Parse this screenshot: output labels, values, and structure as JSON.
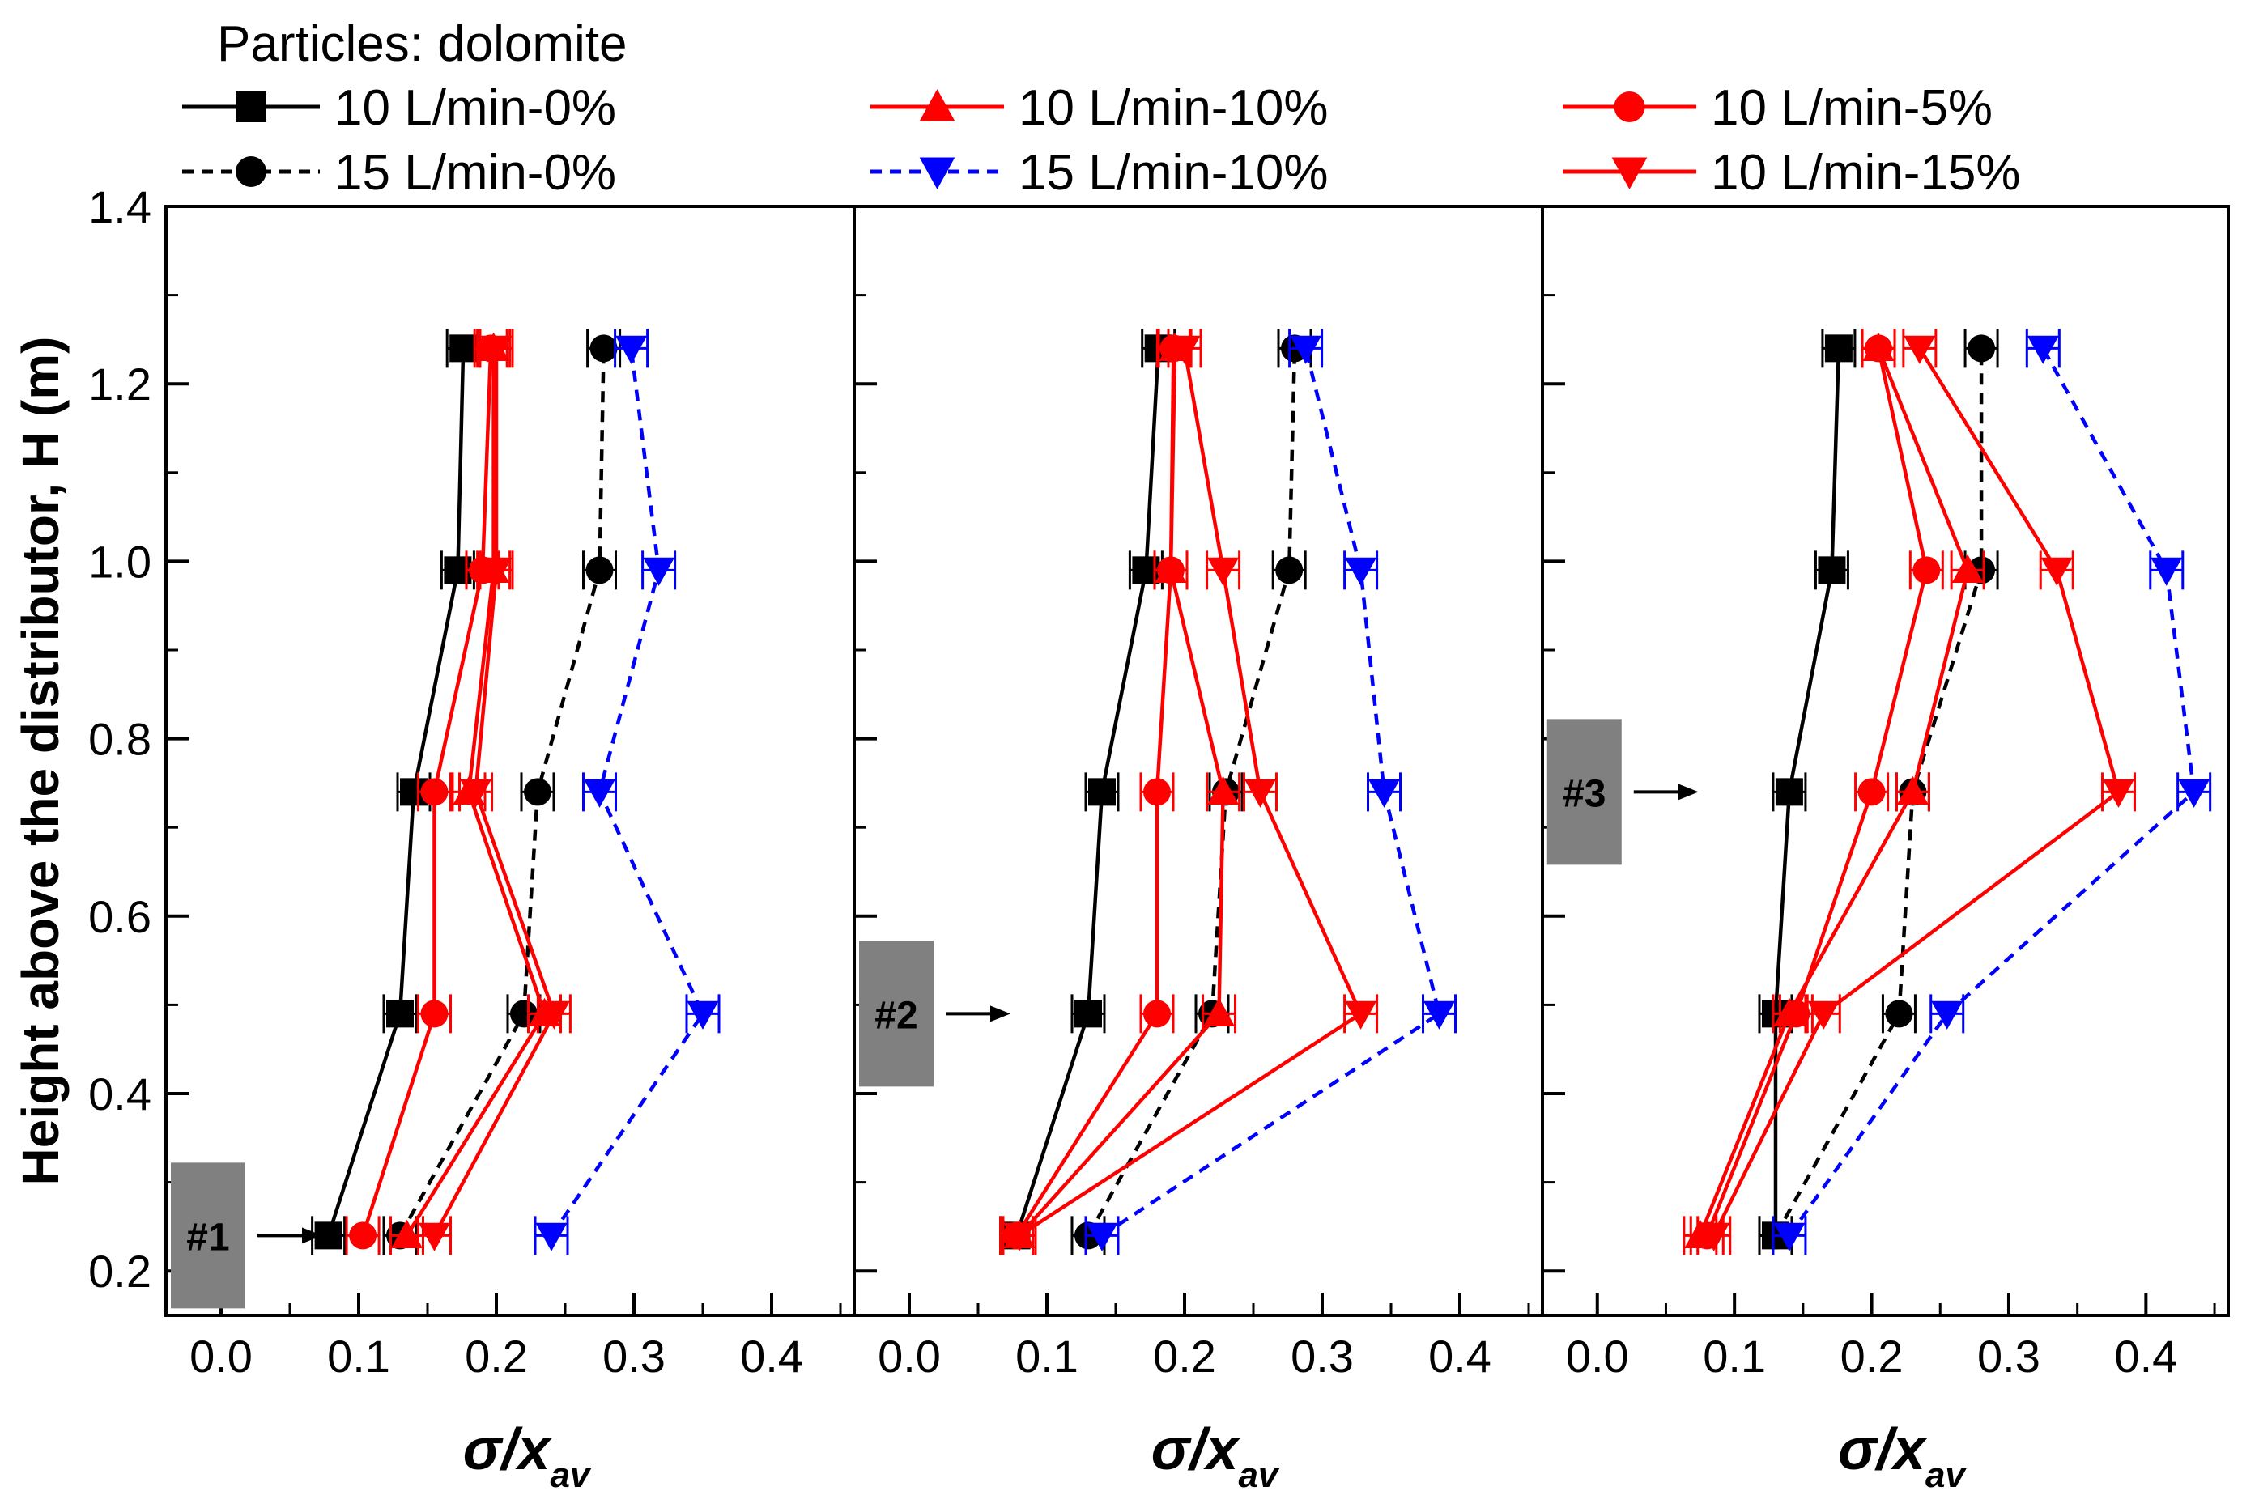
{
  "header": {
    "particles_label": "Particles: dolomite"
  },
  "legend": [
    {
      "id": "s1",
      "label": "10 L/min-0%",
      "color": "#000000",
      "marker": "square",
      "dash": "solid"
    },
    {
      "id": "s2",
      "label": "15 L/min-0%",
      "color": "#000000",
      "marker": "circle",
      "dash": "dashed"
    },
    {
      "id": "s3",
      "label": "10 L/min-10%",
      "color": "#ff0000",
      "marker": "triangle-up",
      "dash": "solid"
    },
    {
      "id": "s4",
      "label": "15 L/min-10%",
      "color": "#0000ff",
      "marker": "triangle-down",
      "dash": "dashed"
    },
    {
      "id": "s5",
      "label": "10 L/min-5%",
      "color": "#ff0000",
      "marker": "circle",
      "dash": "solid"
    },
    {
      "id": "s6",
      "label": "10 L/min-15%",
      "color": "#ff0000",
      "marker": "triangle-down",
      "dash": "solid"
    }
  ],
  "chart_data": {
    "type": "line",
    "ylabel": "Height above the distributor, H (m)",
    "xlabel": "σ/x_av",
    "xlim": [
      -0.04,
      0.46
    ],
    "ylim": [
      0.15,
      1.4
    ],
    "x_ticks": [
      "0.0",
      "0.1",
      "0.2",
      "0.3",
      "0.4"
    ],
    "y_ticks": [
      "0.2",
      "0.4",
      "0.6",
      "0.8",
      "1.0",
      "1.2",
      "1.4"
    ],
    "heights": [
      0.24,
      0.49,
      0.74,
      0.99,
      1.24
    ],
    "panels": [
      {
        "tag": "#1",
        "tag_value": {
          "x": 0.0,
          "y": 0.24
        },
        "series": [
          {
            "id": "s1",
            "x": [
              0.078,
              0.13,
              0.14,
              0.172,
              0.176
            ]
          },
          {
            "id": "s2",
            "x": [
              0.13,
              0.22,
              0.23,
              0.275,
              0.278
            ]
          },
          {
            "id": "s3",
            "x": [
              0.135,
              0.235,
              0.18,
              0.198,
              0.198
            ]
          },
          {
            "id": "s4",
            "x": [
              0.24,
              0.35,
              0.275,
              0.318,
              0.298
            ]
          },
          {
            "id": "s5",
            "x": [
              0.103,
              0.155,
              0.155,
              0.19,
              0.196
            ]
          },
          {
            "id": "s6",
            "x": [
              0.155,
              0.242,
              0.185,
              0.2,
              0.2
            ]
          }
        ]
      },
      {
        "tag": "#2",
        "tag_value": {
          "x": 0.0,
          "y": 0.49
        },
        "series": [
          {
            "id": "s1",
            "x": [
              0.078,
              0.13,
              0.14,
              0.172,
              0.181
            ]
          },
          {
            "id": "s2",
            "x": [
              0.13,
              0.22,
              0.23,
              0.276,
              0.28
            ]
          },
          {
            "id": "s3",
            "x": [
              0.08,
              0.225,
              0.228,
              0.19,
              0.193
            ]
          },
          {
            "id": "s4",
            "x": [
              0.14,
              0.385,
              0.345,
              0.328,
              0.288
            ]
          },
          {
            "id": "s5",
            "x": [
              0.078,
              0.18,
              0.18,
              0.19,
              0.192
            ]
          },
          {
            "id": "s6",
            "x": [
              0.08,
              0.328,
              0.255,
              0.228,
              0.2
            ]
          }
        ]
      },
      {
        "tag": "#3",
        "tag_value": {
          "x": 0.0,
          "y": 0.74
        },
        "series": [
          {
            "id": "s1",
            "x": [
              0.13,
              0.13,
              0.14,
              0.171,
              0.176
            ]
          },
          {
            "id": "s2",
            "x": [
              0.13,
              0.22,
              0.23,
              0.28,
              0.28
            ]
          },
          {
            "id": "s3",
            "x": [
              0.075,
              0.14,
              0.23,
              0.27,
              0.205
            ]
          },
          {
            "id": "s4",
            "x": [
              0.14,
              0.255,
              0.435,
              0.415,
              0.325
            ]
          },
          {
            "id": "s5",
            "x": [
              0.08,
              0.145,
              0.2,
              0.24,
              0.205
            ]
          },
          {
            "id": "s6",
            "x": [
              0.085,
              0.165,
              0.38,
              0.335,
              0.235
            ]
          }
        ]
      }
    ]
  }
}
